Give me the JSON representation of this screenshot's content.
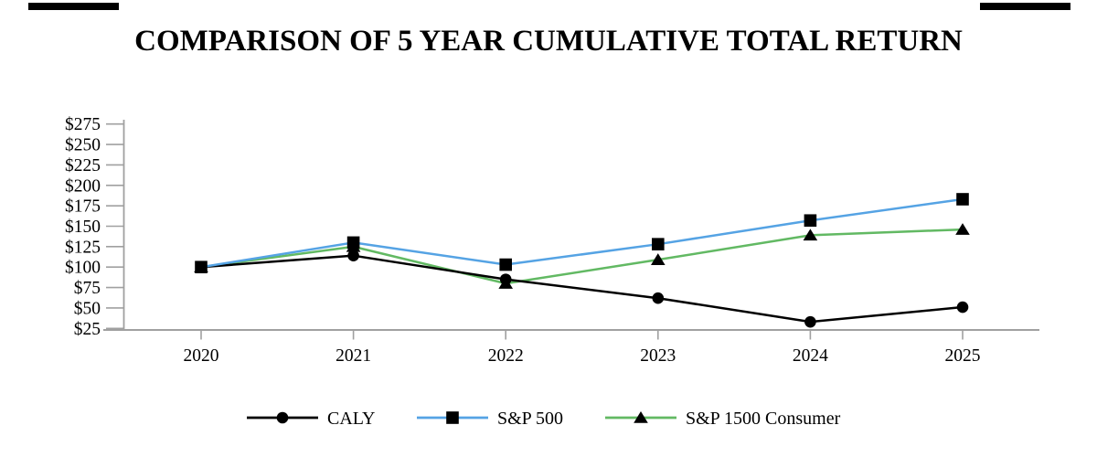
{
  "title": "COMPARISON OF 5 YEAR CUMULATIVE TOTAL RETURN",
  "chart_data": {
    "type": "line",
    "categories": [
      "2020",
      "2021",
      "2022",
      "2023",
      "2024",
      "2025"
    ],
    "series": [
      {
        "name": "CALY",
        "color": "#000000",
        "marker": "circle",
        "z": 1,
        "values": [
          100,
          114,
          85,
          62,
          33,
          51
        ]
      },
      {
        "name": "S&P 500",
        "color": "#55a3e4",
        "marker": "square",
        "z": 2,
        "values": [
          100,
          130,
          103,
          128,
          157,
          183
        ]
      },
      {
        "name": "S&P 1500 Consumer",
        "color": "#62b963",
        "marker": "triangle",
        "z": 0,
        "values": [
          100,
          125,
          80,
          109,
          139,
          146
        ]
      }
    ],
    "marker_color": "#000000",
    "y_ticks": [
      {
        "label": "$275",
        "value": 275
      },
      {
        "label": "$250",
        "value": 250
      },
      {
        "label": "$225",
        "value": 225
      },
      {
        "label": "$200",
        "value": 200
      },
      {
        "label": "$175",
        "value": 175
      },
      {
        "label": "$150",
        "value": 150
      },
      {
        "label": "$125",
        "value": 125
      },
      {
        "label": "$100",
        "value": 100
      },
      {
        "label": "$75",
        "value": 75
      },
      {
        "label": "$50",
        "value": 50
      },
      {
        "label": "$25",
        "value": 25
      }
    ],
    "ylim": [
      25,
      275
    ],
    "xlabel": "",
    "ylabel": "",
    "grid": false,
    "axis_color": "#a0a0a0",
    "legend_position": "bottom"
  }
}
